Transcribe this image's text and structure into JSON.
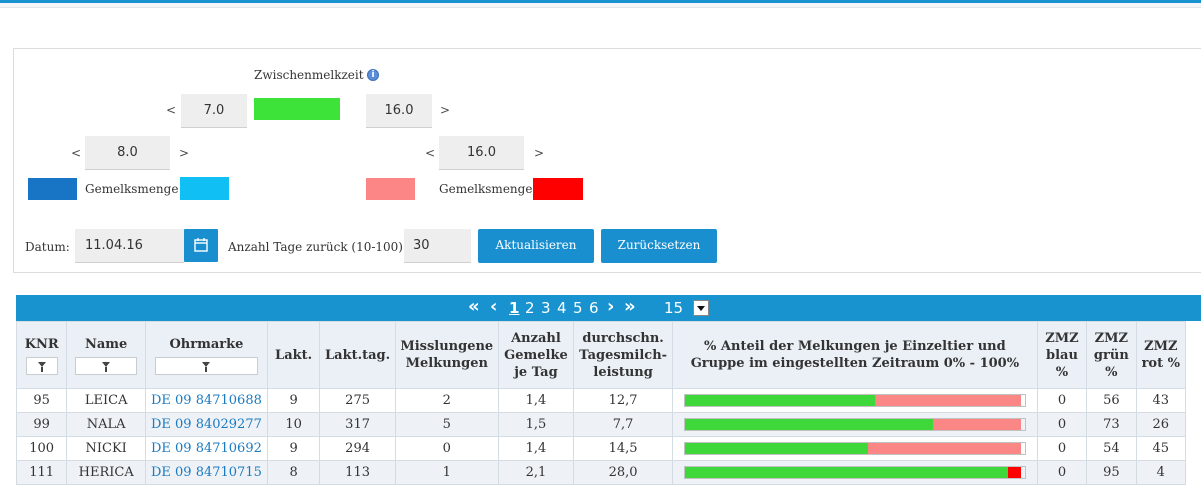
{
  "filters": {
    "zwischenmelkzeit_label": "Zwischenmelkzeit",
    "zmz_low_value": "7.0",
    "zmz_high_value": "16.0",
    "gm_low_value": "8.0",
    "gm_high_value": "16.0",
    "lt": "<",
    "gt": ">",
    "gemelksmenge_label": "Gemelksmenge",
    "datum_label": "Datum:",
    "datum_value": "11.04.16",
    "anzahl_tage_label": "Anzahl Tage zurück (10-100):",
    "anzahl_tage_value": "30",
    "aktualisieren_label": "Aktualisieren",
    "zuruecksetzen_label": "Zurücksetzen",
    "info_glyph": "i"
  },
  "colors": {
    "zmz_green": "#3ee33a",
    "gm_dark_blue": "#1874c4",
    "gm_light_blue": "#10bff4",
    "gm_light_red": "#fc8585",
    "gm_red": "#ff0000",
    "accent": "#1893cf",
    "bar_green": "#3ed83a",
    "bar_light_red": "#fb8686",
    "bar_red": "#ff0000"
  },
  "pager": {
    "first": "«",
    "prev": "‹",
    "pages": [
      "1",
      "2",
      "3",
      "4",
      "5",
      "6"
    ],
    "current": "1",
    "next": "›",
    "last": "»",
    "page_size": "15"
  },
  "table": {
    "headers": {
      "knr": "KNR",
      "name": "Name",
      "ohrmarke": "Ohrmarke",
      "lakt": "Lakt.",
      "lakttag": "Lakt.tag.",
      "misslungene": "Misslungene Melkungen",
      "anzahl": "Anzahl Gemelke je Tag",
      "durchschn": "durchschn. Tagesmilch-leistung",
      "anteil": "% Anteil der Melkungen je Einzeltier und Gruppe im eingestellten Zeitraum 0% - 100%",
      "zmz_blau": "ZMZ blau %",
      "zmz_gruen": "ZMZ grün %",
      "zmz_rot": "ZMZ rot %"
    },
    "rows": [
      {
        "knr": "95",
        "name": "LEICA",
        "ohrmarke": "DE 09 84710688",
        "lakt": "9",
        "lakttag": "275",
        "misslungene": "2",
        "anzahl": "1,4",
        "leistung": "12,7",
        "blau": "0",
        "gruen": "56",
        "rot": "43",
        "bar": {
          "blue": 0,
          "green": 56,
          "lightred": 43,
          "red": 0
        }
      },
      {
        "knr": "99",
        "name": "NALA",
        "ohrmarke": "DE 09 84029277",
        "lakt": "10",
        "lakttag": "317",
        "misslungene": "5",
        "anzahl": "1,5",
        "leistung": "7,7",
        "blau": "0",
        "gruen": "73",
        "rot": "26",
        "bar": {
          "blue": 0,
          "green": 73,
          "lightred": 26,
          "red": 0
        }
      },
      {
        "knr": "100",
        "name": "NICKI",
        "ohrmarke": "DE 09 84710692",
        "lakt": "9",
        "lakttag": "294",
        "misslungene": "0",
        "anzahl": "1,4",
        "leistung": "14,5",
        "blau": "0",
        "gruen": "54",
        "rot": "45",
        "bar": {
          "blue": 0,
          "green": 54,
          "lightred": 45,
          "red": 0
        }
      },
      {
        "knr": "111",
        "name": "HERICA",
        "ohrmarke": "DE 09 84710715",
        "lakt": "8",
        "lakttag": "113",
        "misslungene": "1",
        "anzahl": "2,1",
        "leistung": "28,0",
        "blau": "0",
        "gruen": "95",
        "rot": "4",
        "bar": {
          "blue": 0,
          "green": 95,
          "lightred": 0,
          "red": 4
        }
      }
    ]
  }
}
